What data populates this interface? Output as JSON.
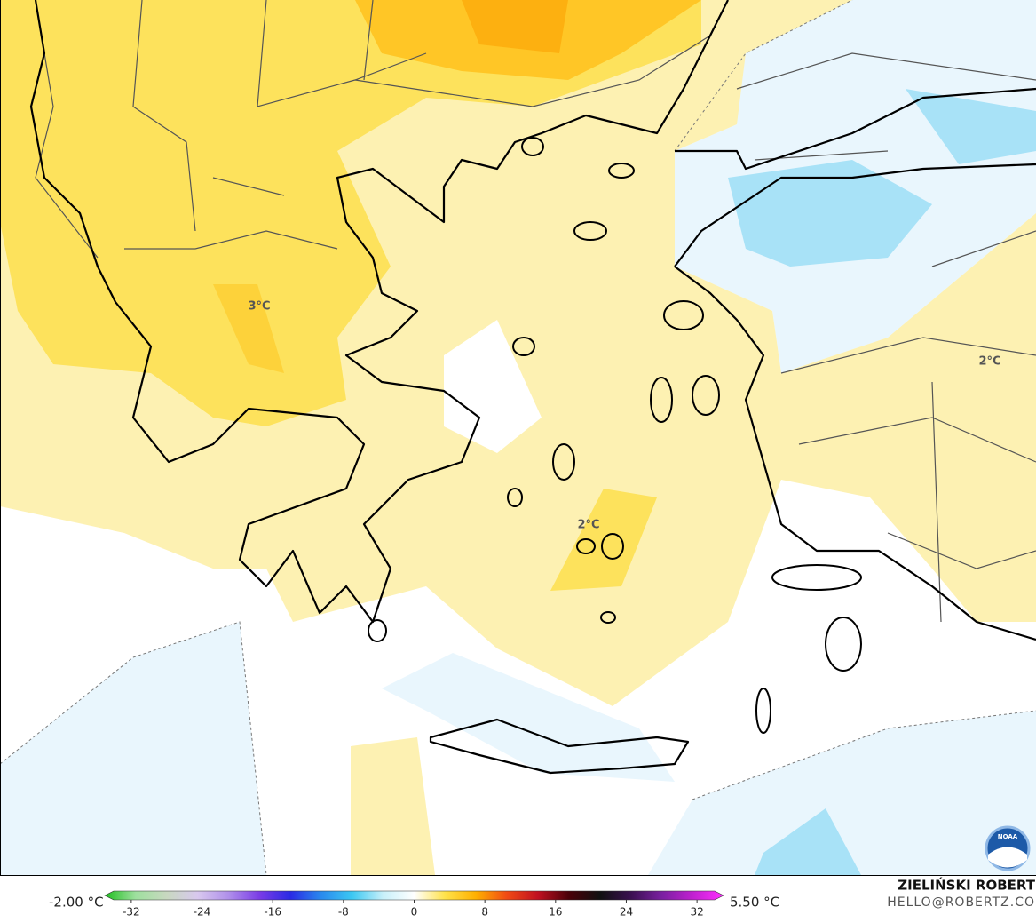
{
  "map": {
    "labels": [
      "3°C",
      "2°C",
      "2°C"
    ]
  },
  "legend": {
    "min_label": "-2.00 °C",
    "max_label": "5.50 °C",
    "lim": [
      -35,
      35
    ],
    "ticks": [
      -32,
      -24,
      -16,
      -8,
      0,
      8,
      16,
      24,
      32
    ],
    "colors": [
      "#1fbf1f",
      "#9ee09e",
      "#c8d8c0",
      "#d8c8ee",
      "#b090ea",
      "#7a3ce6",
      "#2a2ae4",
      "#2a8aee",
      "#3cc8f2",
      "#c8f0fa",
      "#ffffff",
      "#ffe24a",
      "#ffb000",
      "#f04a14",
      "#c01020",
      "#4a0008",
      "#101010",
      "#3a1050",
      "#7a20a0",
      "#c020d0",
      "#ff30ff"
    ]
  },
  "credit": {
    "author": "ZIELIŃSKI ROBERT",
    "email": "HELLO@ROBERTZ.CO"
  },
  "logo": "NOAA"
}
